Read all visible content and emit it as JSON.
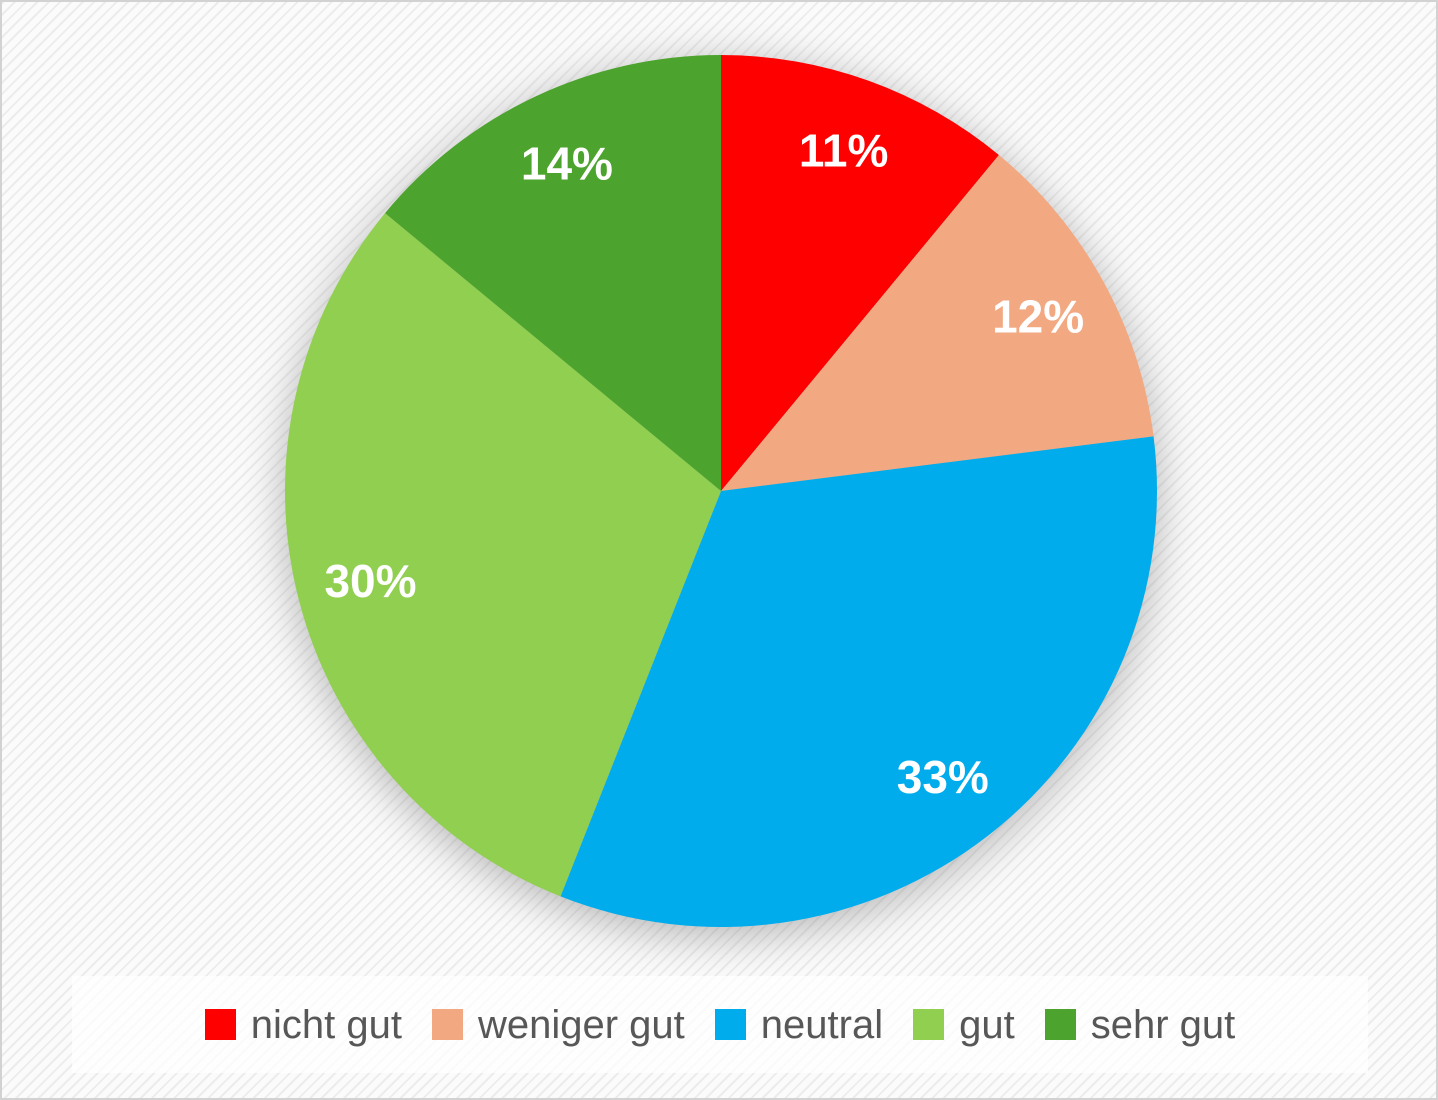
{
  "chart_data": {
    "type": "pie",
    "title": "",
    "categories": [
      "nicht gut",
      "weniger gut",
      "neutral",
      "gut",
      "sehr gut"
    ],
    "values": [
      11,
      12,
      33,
      30,
      14
    ],
    "data_labels": [
      "11%",
      "12%",
      "33%",
      "30%",
      "14%"
    ],
    "colors": [
      "#FE0000",
      "#F2A881",
      "#00ACEC",
      "#90CF4F",
      "#4CA32D"
    ],
    "start_angle_deg": 0,
    "direction": "clockwise",
    "data_label_color": "#FFFFFF",
    "legend_position": "bottom"
  },
  "legend": {
    "items": [
      {
        "label": "nicht gut",
        "color": "#FE0000"
      },
      {
        "label": "weniger gut",
        "color": "#F2A881"
      },
      {
        "label": "neutral",
        "color": "#00ACEC"
      },
      {
        "label": "gut",
        "color": "#90CF4F"
      },
      {
        "label": "sehr gut",
        "color": "#4CA32D"
      }
    ]
  }
}
